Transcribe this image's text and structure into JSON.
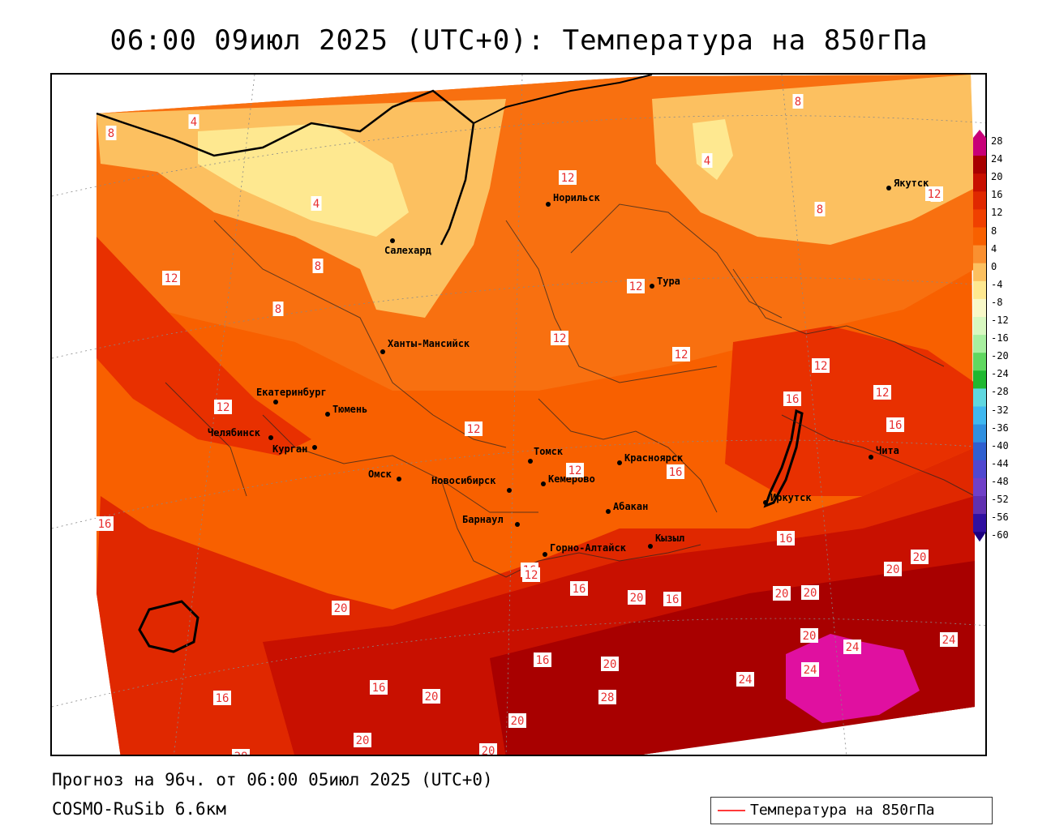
{
  "title": "06:00 09июл 2025 (UTC+0): Температура на 850гПа",
  "footer": {
    "forecast": "Прогноз на 96ч. от 06:00 05июл 2025 (UTC+0)",
    "model": "COSMO-RuSib 6.6км"
  },
  "legend": {
    "label": "Температура на 850гПа",
    "line_color": "#ff3a3a"
  },
  "colorbar": {
    "levels": [
      "28",
      "24",
      "20",
      "16",
      "12",
      "8",
      "4",
      "0",
      "-4",
      "-8",
      "-12",
      "-16",
      "-20",
      "-24",
      "-28",
      "-32",
      "-36",
      "-40",
      "-44",
      "-48",
      "-52",
      "-56",
      "-60"
    ],
    "colors": [
      "#c80078",
      "#a80000",
      "#c81000",
      "#e02800",
      "#f04000",
      "#f86000",
      "#fa9030",
      "#fcc060",
      "#fee890",
      "#f8f8c8",
      "#d8f8c0",
      "#a8f0a0",
      "#60d860",
      "#20b830",
      "#60d8e0",
      "#40b8f0",
      "#3090e0",
      "#3060d0",
      "#5048d0",
      "#7040c8",
      "#6030b0",
      "#3010a0",
      "#1c0080"
    ]
  },
  "cities": [
    {
      "name": "Норильск"
    },
    {
      "name": "Салехард"
    },
    {
      "name": "Якутск"
    },
    {
      "name": "Тура"
    },
    {
      "name": "Ханты-Мансийск"
    },
    {
      "name": "Екатеринбург"
    },
    {
      "name": "Тюмень"
    },
    {
      "name": "Челябинск"
    },
    {
      "name": "Курган"
    },
    {
      "name": "Омск"
    },
    {
      "name": "Новосибирск"
    },
    {
      "name": "Томск"
    },
    {
      "name": "Кемерово"
    },
    {
      "name": "Красноярск"
    },
    {
      "name": "Абакан"
    },
    {
      "name": "Барнаул"
    },
    {
      "name": "Горно-Алтайск"
    },
    {
      "name": "Кызыл"
    },
    {
      "name": "Иркутск"
    },
    {
      "name": "Чита"
    }
  ],
  "isotherm_labels": [
    "8",
    "4",
    "4",
    "8",
    "12",
    "8",
    "4",
    "8",
    "8",
    "8",
    "12",
    "12",
    "12",
    "12",
    "12",
    "12",
    "12",
    "12",
    "12",
    "12",
    "16",
    "16",
    "16",
    "16",
    "16",
    "16",
    "16",
    "16",
    "16",
    "16",
    "20",
    "20",
    "20",
    "20",
    "20",
    "20",
    "20",
    "20",
    "20",
    "24",
    "24",
    "24",
    "24",
    "28",
    "28",
    "20",
    "20",
    "20",
    "16",
    "12"
  ]
}
